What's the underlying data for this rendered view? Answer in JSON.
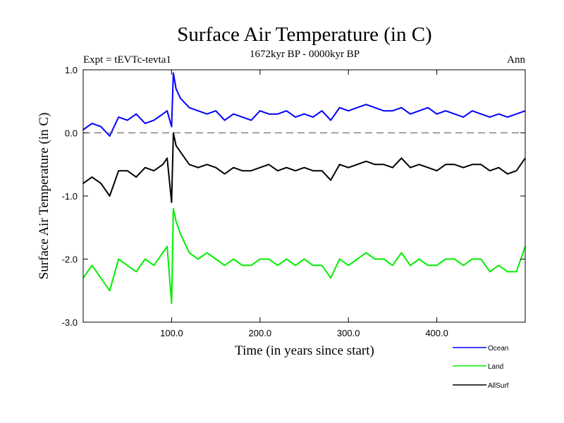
{
  "chart_data": {
    "type": "line",
    "title": "Surface Air Temperature (in C)",
    "subtitle": "1672kyr BP - 0000kyr BP",
    "experiment": "Expt = tEVTc-tevta1",
    "season": "Ann",
    "xlabel": "Time (in years since start)",
    "ylabel": "Surface Air Temperature (in C)",
    "xlim": [
      0,
      500
    ],
    "ylim": [
      -3.0,
      1.0
    ],
    "x_ticks": [
      100,
      200,
      300,
      400
    ],
    "x_tick_labels": [
      "100.0",
      "200.0",
      "300.0",
      "400.0"
    ],
    "y_ticks": [
      1.0,
      0.0,
      -1.0,
      -2.0,
      -3.0
    ],
    "y_tick_labels": [
      "1.0",
      "0.0",
      "-1.0",
      "-2.0",
      "-3.0"
    ],
    "reference_line": 0.0,
    "legend_position": "bottom-right",
    "series": [
      {
        "name": "Ocean",
        "color": "#0000ff",
        "x": [
          0,
          10,
          20,
          30,
          40,
          50,
          60,
          70,
          80,
          90,
          95,
          100,
          102,
          105,
          110,
          120,
          130,
          140,
          150,
          160,
          170,
          180,
          190,
          200,
          210,
          220,
          230,
          240,
          250,
          260,
          270,
          280,
          290,
          300,
          310,
          320,
          330,
          340,
          350,
          360,
          370,
          380,
          390,
          400,
          410,
          420,
          430,
          440,
          450,
          460,
          470,
          480,
          490,
          500
        ],
        "values": [
          0.05,
          0.15,
          0.1,
          -0.05,
          0.25,
          0.2,
          0.3,
          0.15,
          0.2,
          0.3,
          0.35,
          0.1,
          0.95,
          0.7,
          0.55,
          0.4,
          0.35,
          0.3,
          0.35,
          0.2,
          0.3,
          0.25,
          0.2,
          0.35,
          0.3,
          0.3,
          0.35,
          0.25,
          0.3,
          0.25,
          0.35,
          0.2,
          0.4,
          0.35,
          0.4,
          0.45,
          0.4,
          0.35,
          0.35,
          0.4,
          0.3,
          0.35,
          0.4,
          0.3,
          0.35,
          0.3,
          0.25,
          0.35,
          0.3,
          0.25,
          0.3,
          0.25,
          0.3,
          0.35
        ]
      },
      {
        "name": "Land",
        "color": "#00ee00",
        "x": [
          0,
          10,
          20,
          30,
          40,
          50,
          60,
          70,
          80,
          90,
          95,
          100,
          102,
          105,
          110,
          120,
          130,
          140,
          150,
          160,
          170,
          180,
          190,
          200,
          210,
          220,
          230,
          240,
          250,
          260,
          270,
          280,
          290,
          300,
          310,
          320,
          330,
          340,
          350,
          360,
          370,
          380,
          390,
          400,
          410,
          420,
          430,
          440,
          450,
          460,
          470,
          480,
          490,
          500
        ],
        "values": [
          -2.3,
          -2.1,
          -2.3,
          -2.5,
          -2.0,
          -2.1,
          -2.2,
          -2.0,
          -2.1,
          -1.9,
          -1.8,
          -2.7,
          -1.2,
          -1.4,
          -1.6,
          -1.9,
          -2.0,
          -1.9,
          -2.0,
          -2.1,
          -2.0,
          -2.1,
          -2.1,
          -2.0,
          -2.0,
          -2.1,
          -2.0,
          -2.1,
          -2.0,
          -2.1,
          -2.1,
          -2.3,
          -2.0,
          -2.1,
          -2.0,
          -1.9,
          -2.0,
          -2.0,
          -2.1,
          -1.9,
          -2.1,
          -2.0,
          -2.1,
          -2.1,
          -2.0,
          -2.0,
          -2.1,
          -2.0,
          -2.0,
          -2.2,
          -2.1,
          -2.2,
          -2.2,
          -1.8
        ]
      },
      {
        "name": "AllSurf",
        "color": "#000000",
        "x": [
          0,
          10,
          20,
          30,
          40,
          50,
          60,
          70,
          80,
          90,
          95,
          100,
          102,
          105,
          110,
          120,
          130,
          140,
          150,
          160,
          170,
          180,
          190,
          200,
          210,
          220,
          230,
          240,
          250,
          260,
          270,
          280,
          290,
          300,
          310,
          320,
          330,
          340,
          350,
          360,
          370,
          380,
          390,
          400,
          410,
          420,
          430,
          440,
          450,
          460,
          470,
          480,
          490,
          500
        ],
        "values": [
          -0.8,
          -0.7,
          -0.8,
          -1.0,
          -0.6,
          -0.6,
          -0.7,
          -0.55,
          -0.6,
          -0.5,
          -0.4,
          -1.1,
          0.0,
          -0.2,
          -0.3,
          -0.5,
          -0.55,
          -0.5,
          -0.55,
          -0.65,
          -0.55,
          -0.6,
          -0.6,
          -0.55,
          -0.5,
          -0.6,
          -0.55,
          -0.6,
          -0.55,
          -0.6,
          -0.6,
          -0.75,
          -0.5,
          -0.55,
          -0.5,
          -0.45,
          -0.5,
          -0.5,
          -0.55,
          -0.4,
          -0.55,
          -0.5,
          -0.55,
          -0.6,
          -0.5,
          -0.5,
          -0.55,
          -0.5,
          -0.5,
          -0.6,
          -0.55,
          -0.65,
          -0.6,
          -0.4
        ]
      }
    ]
  }
}
